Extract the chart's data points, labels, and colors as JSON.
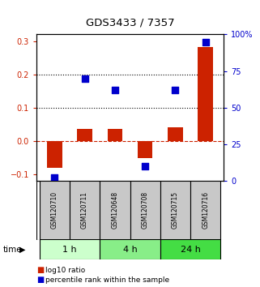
{
  "title": "GDS3433 / 7357",
  "samples": [
    "GSM120710",
    "GSM120711",
    "GSM120648",
    "GSM120708",
    "GSM120715",
    "GSM120716"
  ],
  "log10_ratio": [
    -0.082,
    0.035,
    0.036,
    -0.052,
    0.04,
    0.282
  ],
  "percentile_rank": [
    2,
    70,
    62,
    10,
    62,
    95
  ],
  "bar_color": "#cc2200",
  "square_color": "#0000cc",
  "left_ylim": [
    -0.12,
    0.32
  ],
  "right_ylim": [
    0,
    100
  ],
  "left_yticks": [
    -0.1,
    0.0,
    0.1,
    0.2,
    0.3
  ],
  "right_yticks": [
    0,
    25,
    50,
    75,
    100
  ],
  "right_yticklabels": [
    "0",
    "25",
    "50",
    "75",
    "100%"
  ],
  "dotted_lines": [
    0.1,
    0.2
  ],
  "zero_line_color": "#cc2200",
  "group_starts": [
    0,
    2,
    4
  ],
  "group_ends": [
    2,
    4,
    6
  ],
  "group_labels": [
    "1 h",
    "4 h",
    "24 h"
  ],
  "group_colors": [
    "#ccffcc",
    "#88ee88",
    "#44dd44"
  ],
  "legend_red_label": "log10 ratio",
  "legend_blue_label": "percentile rank within the sample",
  "bar_width": 0.5,
  "square_size": 40,
  "label_box_color": "#c8c8c8"
}
